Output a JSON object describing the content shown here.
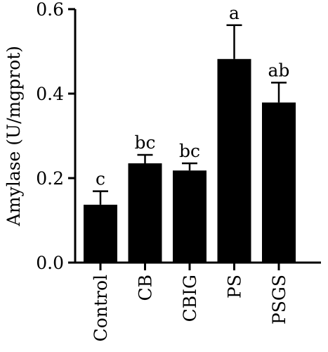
{
  "chart_data": {
    "type": "bar",
    "categories": [
      "Control",
      "CB",
      "CBIG",
      "PS",
      "PSGS"
    ],
    "values": [
      0.137,
      0.235,
      0.218,
      0.482,
      0.379
    ],
    "errors": [
      0.032,
      0.02,
      0.017,
      0.08,
      0.047
    ],
    "significance_labels": [
      "c",
      "bc",
      "bc",
      "a",
      "ab"
    ],
    "ylabel": "Amylase (U/mgprot)",
    "xlabel": "",
    "title": "",
    "ylim": [
      0,
      0.6
    ],
    "yticks": [
      "0.0",
      "0.2",
      "0.4",
      "0.6"
    ],
    "grid": false,
    "colors": {
      "bar": "#000000",
      "axis": "#000000",
      "background": "#ffffff"
    }
  }
}
